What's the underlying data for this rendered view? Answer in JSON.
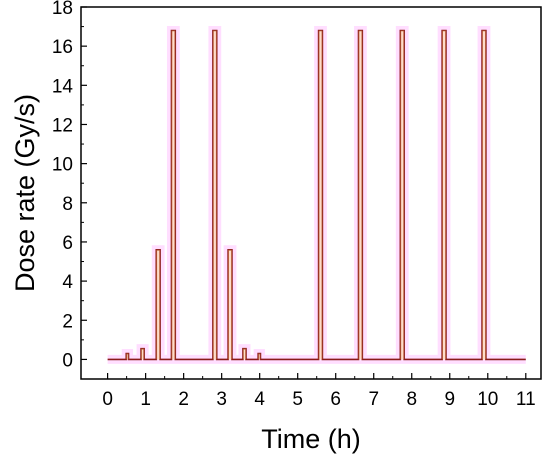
{
  "chart_data": {
    "type": "line",
    "xlabel": "Time (h)",
    "ylabel": "Dose rate (Gy/s)",
    "xlim": [
      -0.7,
      11.4
    ],
    "ylim": [
      -1,
      18
    ],
    "xticks": [
      0,
      1,
      2,
      3,
      4,
      5,
      6,
      7,
      8,
      9,
      10,
      11
    ],
    "yticks": [
      0,
      2,
      4,
      6,
      8,
      10,
      12,
      14,
      16,
      18
    ],
    "grid": false,
    "legend": "none",
    "line_color": "#8b1a1a",
    "glow_color": "#ff00ff",
    "series": [
      {
        "pulses": [
          {
            "start": 0.49,
            "end": 0.55,
            "value": 0.3
          },
          {
            "start": 0.88,
            "end": 0.96,
            "value": 0.55
          },
          {
            "start": 1.28,
            "end": 1.38,
            "value": 5.6
          },
          {
            "start": 1.68,
            "end": 1.78,
            "value": 16.8
          },
          {
            "start": 2.77,
            "end": 2.87,
            "value": 16.8
          },
          {
            "start": 3.17,
            "end": 3.27,
            "value": 5.6
          },
          {
            "start": 3.56,
            "end": 3.64,
            "value": 0.55
          },
          {
            "start": 3.96,
            "end": 4.02,
            "value": 0.3
          },
          {
            "start": 5.55,
            "end": 5.65,
            "value": 16.8
          },
          {
            "start": 6.6,
            "end": 6.7,
            "value": 16.8
          },
          {
            "start": 7.7,
            "end": 7.8,
            "value": 16.8
          },
          {
            "start": 8.8,
            "end": 8.9,
            "value": 16.8
          },
          {
            "start": 9.85,
            "end": 9.95,
            "value": 16.8
          }
        ],
        "baseline": 0,
        "x_range": [
          0,
          11
        ]
      }
    ]
  }
}
